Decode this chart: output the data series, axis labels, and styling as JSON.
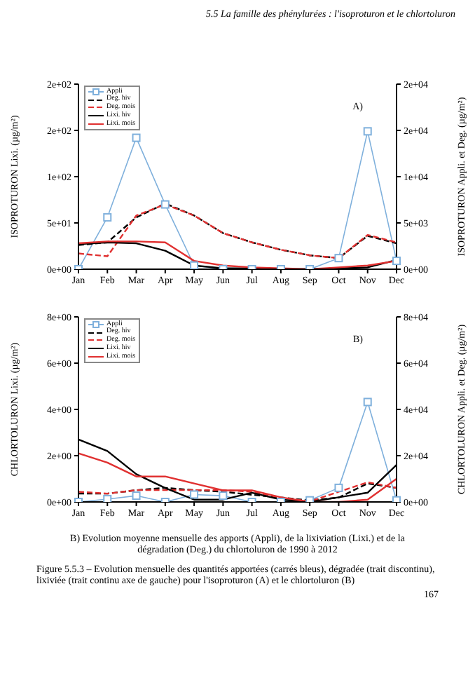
{
  "chart_data": [
    {
      "type": "line",
      "title": "5.5 La famille des phénylurées : l'isoproturon et le chlortoluron",
      "xlabel": null,
      "ylabel": "ISOPROTURON Lixi. (µg/m²)",
      "y2label": "ISOPROTURON Appli. et Deg. (µg/m²)",
      "categories": [
        "Jan",
        "Feb",
        "Mar",
        "Apr",
        "May",
        "Jun",
        "Jul",
        "Aug",
        "Sep",
        "Oct",
        "Nov",
        "Dec"
      ],
      "series": [
        {
          "name": "Appli",
          "color": "#7fb0dc",
          "axis": "y2",
          "marker": "square",
          "line_style": "solid",
          "values": [
            0,
            5600,
            14200,
            7000,
            400,
            0,
            0,
            0,
            0,
            1200,
            14900,
            900
          ]
        },
        {
          "name": "Deg. hiv",
          "color": "#000000",
          "axis": "y2",
          "marker": "none",
          "line_style": "dashed",
          "values": [
            2600,
            2900,
            5600,
            7100,
            5800,
            3900,
            2900,
            2100,
            1500,
            1200,
            3600,
            2800
          ]
        },
        {
          "name": "Deg. mois",
          "color": "#e03030",
          "axis": "y2",
          "marker": "none",
          "line_style": "dashed",
          "values": [
            1700,
            1400,
            5800,
            7000,
            5800,
            3900,
            2900,
            2100,
            1500,
            1200,
            3700,
            2900
          ]
        },
        {
          "name": "Lixi. hiv",
          "color": "#000000",
          "axis": "y",
          "marker": "none",
          "line_style": "solid",
          "values": [
            27,
            29,
            28,
            20,
            4,
            1,
            1,
            0,
            0,
            1,
            2,
            10
          ]
        },
        {
          "name": "Lixi. mois",
          "color": "#e03030",
          "axis": "y",
          "marker": "none",
          "line_style": "solid",
          "values": [
            28,
            30,
            30,
            29,
            9,
            4,
            2,
            1,
            0,
            2,
            4,
            9
          ]
        }
      ],
      "ylim": [
        0,
        200
      ],
      "yticks": [
        {
          "value": 0,
          "label": "0e+00"
        },
        {
          "value": 50,
          "label": "5e+01"
        },
        {
          "value": 100,
          "label": "1e+02"
        },
        {
          "value": 150,
          "label": "2e+02"
        },
        {
          "value": 200,
          "label": "2e+02"
        }
      ],
      "y2lim": [
        0,
        20000
      ],
      "y2ticks": [
        {
          "value": 0,
          "label": "0e+00"
        },
        {
          "value": 5000,
          "label": "5e+03"
        },
        {
          "value": 10000,
          "label": "1e+04"
        },
        {
          "value": 15000,
          "label": "2e+04"
        },
        {
          "value": 20000,
          "label": "2e+04"
        }
      ],
      "grid": false,
      "legend": "top left",
      "annotations": [
        "A)"
      ]
    },
    {
      "type": "line",
      "ylabel": "CHLORTOLURON Lixi. (µg/m²)",
      "y2label": "CHLORTOLURON Appli. et Deg. (µg/m²)",
      "categories": [
        "Jan",
        "Feb",
        "Mar",
        "Apr",
        "May",
        "Jun",
        "Jul",
        "Aug",
        "Sep",
        "Oct",
        "Nov",
        "Dec"
      ],
      "series": [
        {
          "name": "Appli",
          "color": "#7fb0dc",
          "axis": "y2",
          "marker": "square",
          "line_style": "solid",
          "values": [
            0,
            1200,
            2700,
            0,
            3200,
            2700,
            0,
            0,
            700,
            6100,
            43200,
            700
          ]
        },
        {
          "name": "Deg. hiv",
          "color": "#000000",
          "axis": "y2",
          "marker": "none",
          "line_style": "dashed",
          "values": [
            3600,
            3600,
            5100,
            6100,
            5100,
            4400,
            3100,
            1900,
            700,
            1900,
            8000,
            6100
          ]
        },
        {
          "name": "Deg. mois",
          "color": "#e03030",
          "axis": "y2",
          "marker": "none",
          "line_style": "dashed",
          "values": [
            4400,
            3600,
            5100,
            5100,
            5100,
            5100,
            4400,
            1900,
            200,
            4400,
            8500,
            6100
          ]
        },
        {
          "name": "Lixi. hiv",
          "color": "#000000",
          "axis": "y",
          "marker": "none",
          "line_style": "solid",
          "values": [
            2.7,
            2.2,
            1.2,
            0.6,
            0.1,
            0.1,
            0.4,
            0.1,
            0,
            0.2,
            0.4,
            1.6
          ]
        },
        {
          "name": "Lixi. mois",
          "color": "#e03030",
          "axis": "y",
          "marker": "none",
          "line_style": "solid",
          "values": [
            2.1,
            1.7,
            1.1,
            1.1,
            0.8,
            0.5,
            0.5,
            0.2,
            0,
            0,
            0.1,
            1.0
          ]
        }
      ],
      "ylim": [
        0,
        8
      ],
      "yticks": [
        {
          "value": 0,
          "label": "0e+00"
        },
        {
          "value": 2,
          "label": "2e+00"
        },
        {
          "value": 4,
          "label": "4e+00"
        },
        {
          "value": 6,
          "label": "6e+00"
        },
        {
          "value": 8,
          "label": "8e+00"
        }
      ],
      "y2lim": [
        0,
        80000
      ],
      "y2ticks": [
        {
          "value": 0,
          "label": "0e+00"
        },
        {
          "value": 20000,
          "label": "2e+04"
        },
        {
          "value": 40000,
          "label": "4e+04"
        },
        {
          "value": 60000,
          "label": "6e+04"
        },
        {
          "value": 80000,
          "label": "8e+04"
        }
      ],
      "grid": false,
      "legend": "top left",
      "annotations": [
        "B)",
        "B) Evolution moyenne mensuelle des apports (Appli), de la lixiviation (Lixi.) et de la dégradation (Deg.) du chlortoluron de 1990 à 2012",
        "Figure 5.5.3 – Evolution mensuelle des quantités apportées (carrés bleus), dégradée (trait discontinu), lixiviée (trait continu axe de gauche) pour l'isoproturon (A) et le chlortoluron (B)",
        "167"
      ]
    }
  ]
}
